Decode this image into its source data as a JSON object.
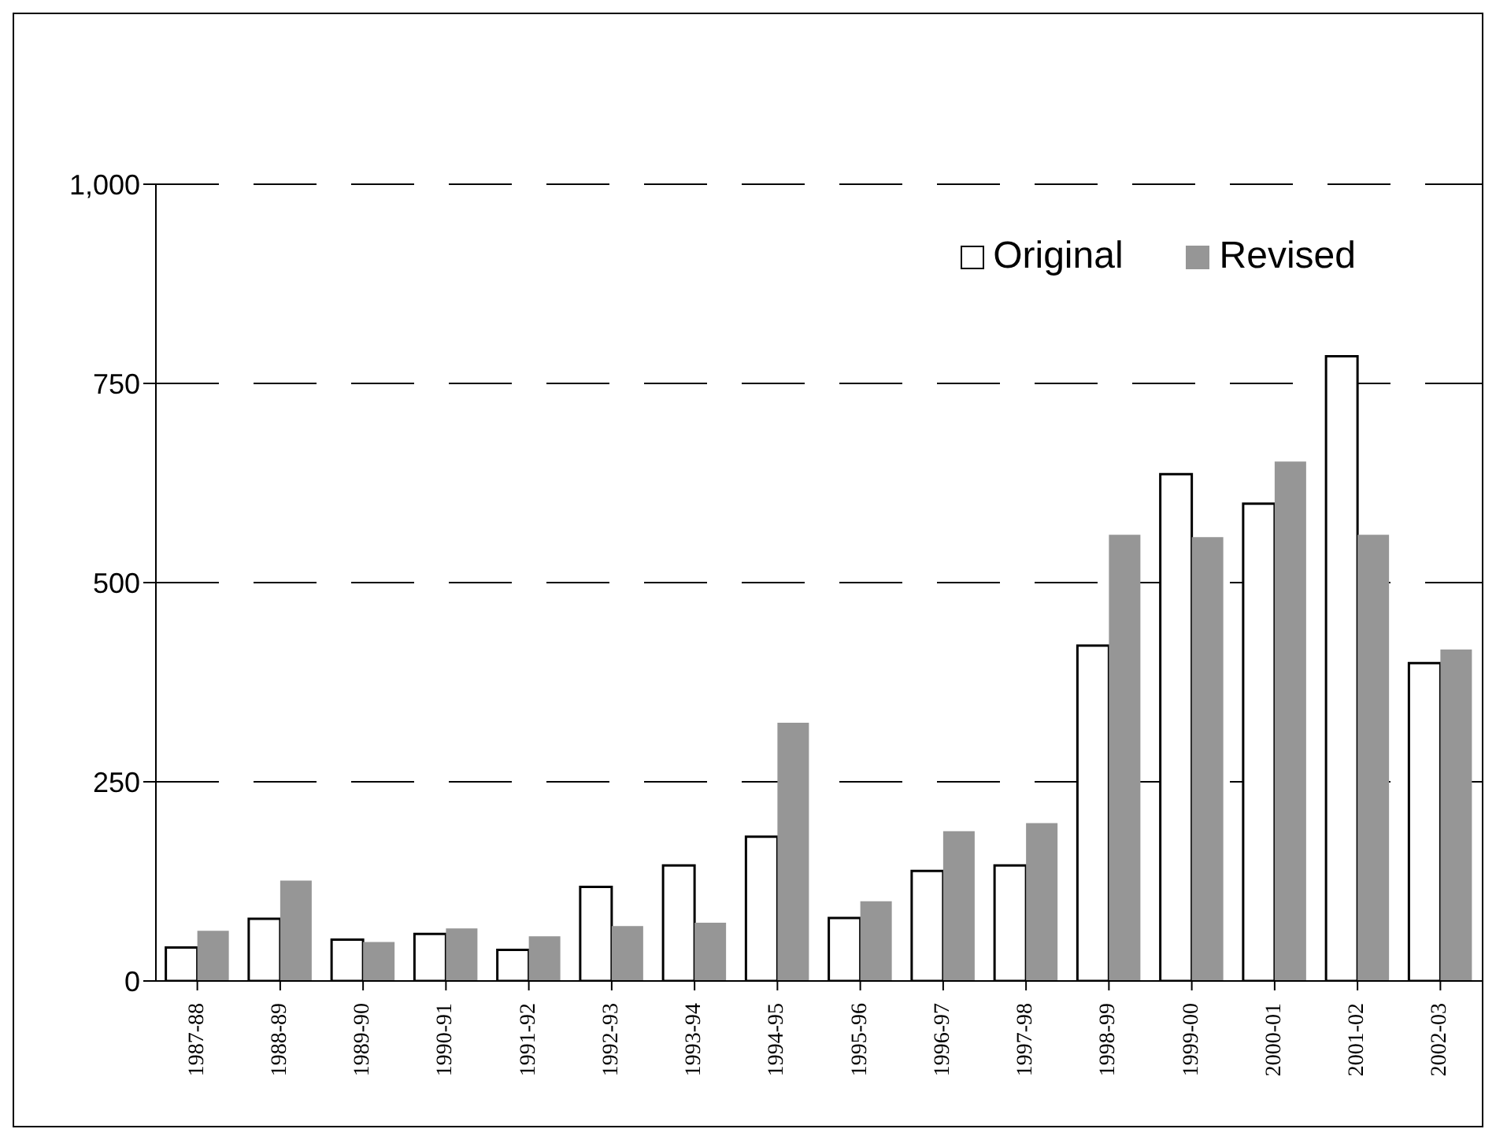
{
  "chart_data": {
    "type": "bar",
    "categories": [
      "1987-88",
      "1988-89",
      "1989-90",
      "1990-91",
      "1991-92",
      "1992-93",
      "1993-94",
      "1994-95",
      "1995-96",
      "1996-97",
      "1997-98",
      "1998-99",
      "1999-00",
      "2000-01",
      "2001-02",
      "2002-03"
    ],
    "series": [
      {
        "name": "Original",
        "color": "#ffffff",
        "values": [
          42,
          78,
          52,
          59,
          39,
          118,
          145,
          181,
          79,
          138,
          145,
          421,
          636,
          599,
          784,
          399
        ]
      },
      {
        "name": "Revised",
        "color": "#969696",
        "values": [
          63,
          126,
          49,
          66,
          56,
          69,
          73,
          324,
          100,
          188,
          198,
          560,
          557,
          652,
          560,
          416
        ]
      }
    ],
    "ylim": [
      0,
      1000
    ],
    "yticks": [
      0,
      250,
      500,
      750,
      {
        "value": 1000,
        "label": "1,000"
      }
    ],
    "grid": "y",
    "legend": "top right",
    "line_style": "dashed"
  }
}
